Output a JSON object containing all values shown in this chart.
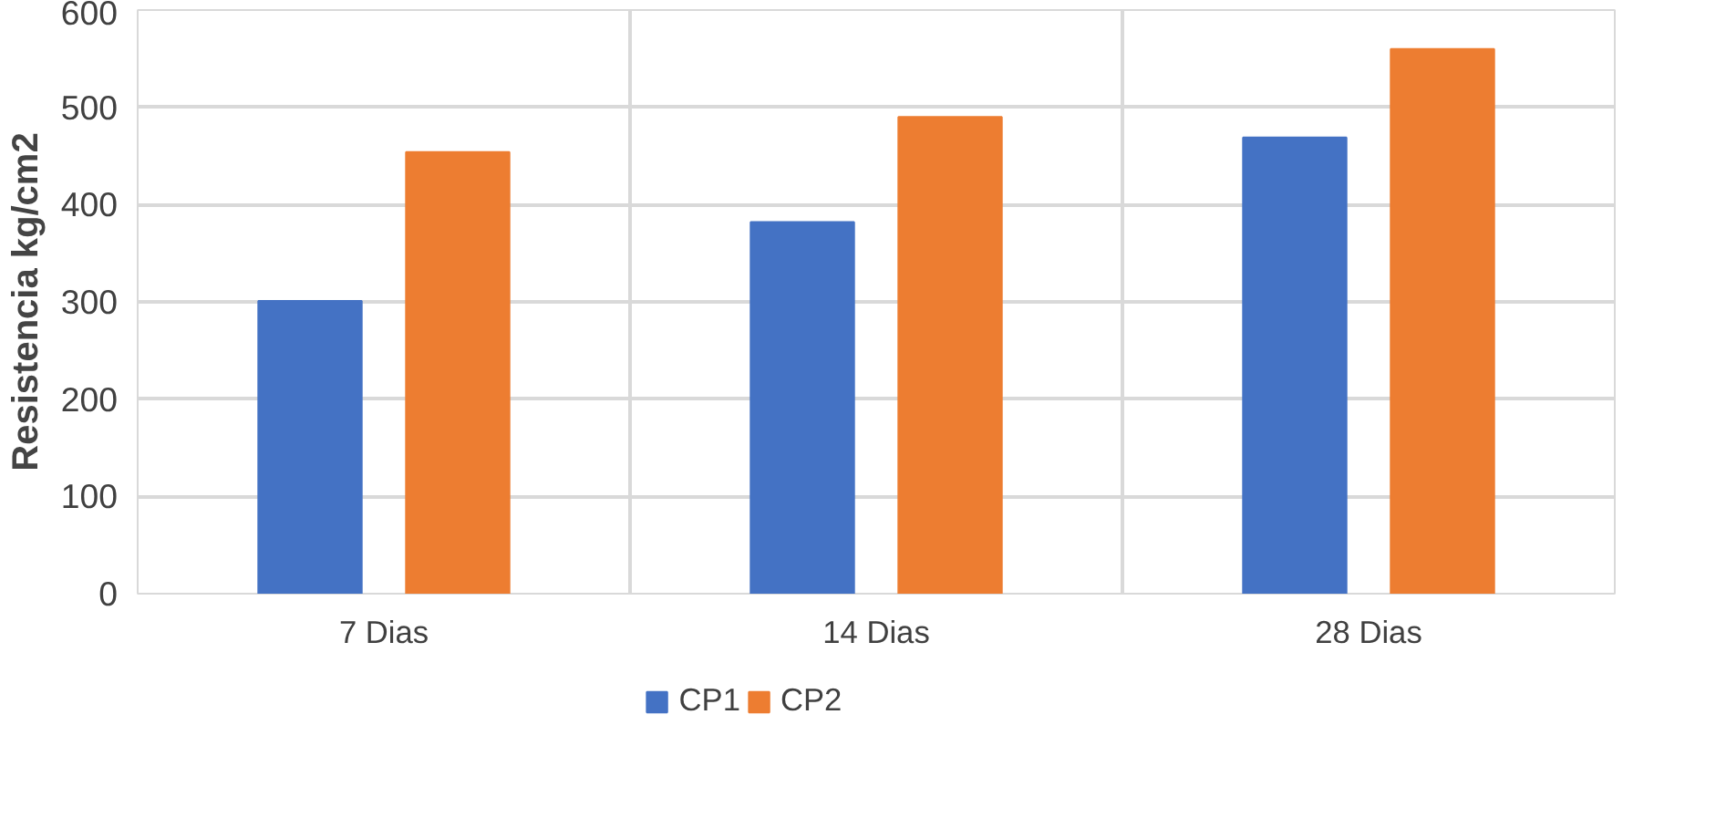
{
  "chart_data": {
    "type": "bar",
    "ylabel": "Resistencia kg/cm2",
    "categories": [
      "7 Dias",
      "14 Dias",
      "28 Dias"
    ],
    "series": [
      {
        "name": "CP1",
        "color": "#4472c4",
        "values": [
          301,
          382,
          469
        ]
      },
      {
        "name": "CP2",
        "color": "#ed7d31",
        "values": [
          454,
          490,
          560
        ]
      }
    ],
    "ylim": [
      0,
      600
    ],
    "yticks": [
      0,
      100,
      200,
      300,
      400,
      500,
      600
    ],
    "grid": true,
    "legend": "bottom"
  }
}
